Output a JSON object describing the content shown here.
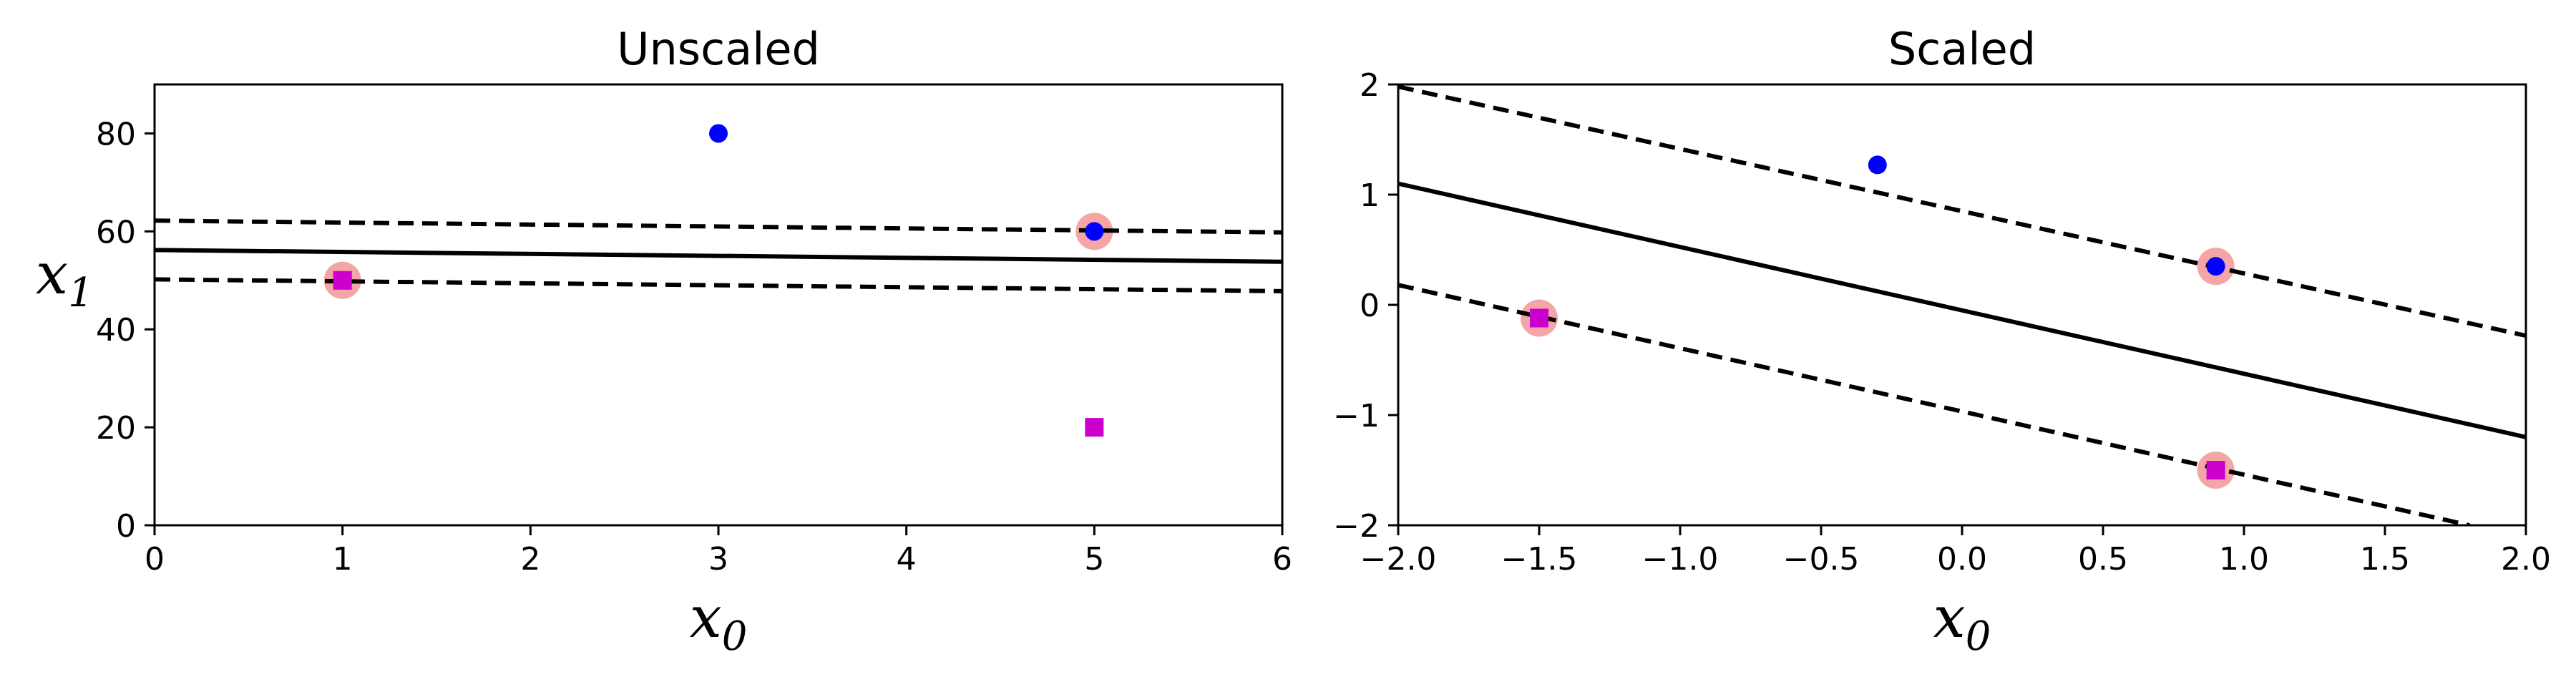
{
  "chart_data": [
    {
      "type": "scatter",
      "title": "Unscaled",
      "xlabel": {
        "base": "x",
        "sub": "0"
      },
      "ylabel": {
        "base": "x",
        "sub": "1"
      },
      "xlim": [
        0,
        6
      ],
      "ylim": [
        0,
        90
      ],
      "xticks": [
        0,
        1,
        2,
        3,
        4,
        5,
        6
      ],
      "yticks": [
        0,
        20,
        40,
        60,
        80
      ],
      "xtick_labels": [
        "0",
        "1",
        "2",
        "3",
        "4",
        "5",
        "6"
      ],
      "ytick_labels": [
        "0",
        "20",
        "40",
        "60",
        "80"
      ],
      "grid": false,
      "series": [
        {
          "marker": "circle",
          "color": "#0000ff",
          "points": [
            [
              3,
              80
            ],
            [
              5,
              60
            ]
          ]
        },
        {
          "marker": "square",
          "color": "#cc00cc",
          "points": [
            [
              1,
              50
            ],
            [
              5,
              20
            ]
          ]
        }
      ],
      "support_vectors": {
        "color": "#f4a5a5",
        "points": [
          [
            1,
            50
          ],
          [
            5,
            60
          ]
        ]
      },
      "lines": [
        {
          "style": "solid",
          "points": [
            [
              0,
              56.2
            ],
            [
              6,
              53.8
            ]
          ]
        },
        {
          "style": "dashed",
          "points": [
            [
              0,
              62.2
            ],
            [
              6,
              59.8
            ]
          ]
        },
        {
          "style": "dashed",
          "points": [
            [
              0,
              50.2
            ],
            [
              6,
              47.8
            ]
          ]
        }
      ]
    },
    {
      "type": "scatter",
      "title": "Scaled",
      "xlabel": {
        "base": "x",
        "sub": "0"
      },
      "ylabel": null,
      "xlim": [
        -2,
        2
      ],
      "ylim": [
        -2,
        2
      ],
      "xticks": [
        -2,
        -1.5,
        -1,
        -0.5,
        0,
        0.5,
        1,
        1.5,
        2
      ],
      "yticks": [
        -2,
        -1,
        0,
        1,
        2
      ],
      "xtick_labels": [
        "−2.0",
        "−1.5",
        "−1.0",
        "−0.5",
        "0.0",
        "0.5",
        "1.0",
        "1.5",
        "2.0"
      ],
      "ytick_labels": [
        "−2",
        "−1",
        "0",
        "1",
        "2"
      ],
      "grid": false,
      "series": [
        {
          "marker": "circle",
          "color": "#0000ff",
          "points": [
            [
              -0.3,
              1.27
            ],
            [
              0.9,
              0.35
            ]
          ]
        },
        {
          "marker": "square",
          "color": "#cc00cc",
          "points": [
            [
              -1.5,
              -0.12
            ],
            [
              0.9,
              -1.5
            ]
          ]
        }
      ],
      "support_vectors": {
        "color": "#f4a5a5",
        "points": [
          [
            -1.5,
            -0.12
          ],
          [
            0.9,
            0.35
          ],
          [
            0.9,
            -1.5
          ]
        ]
      },
      "lines": [
        {
          "style": "solid",
          "points": [
            [
              -2,
              1.1
            ],
            [
              2,
              -1.2
            ]
          ]
        },
        {
          "style": "dashed",
          "points": [
            [
              -2,
              1.98
            ],
            [
              2,
              -0.28
            ]
          ]
        },
        {
          "style": "dashed",
          "points": [
            [
              -2,
              0.18
            ],
            [
              1.8,
              -2.0
            ]
          ]
        }
      ]
    }
  ]
}
